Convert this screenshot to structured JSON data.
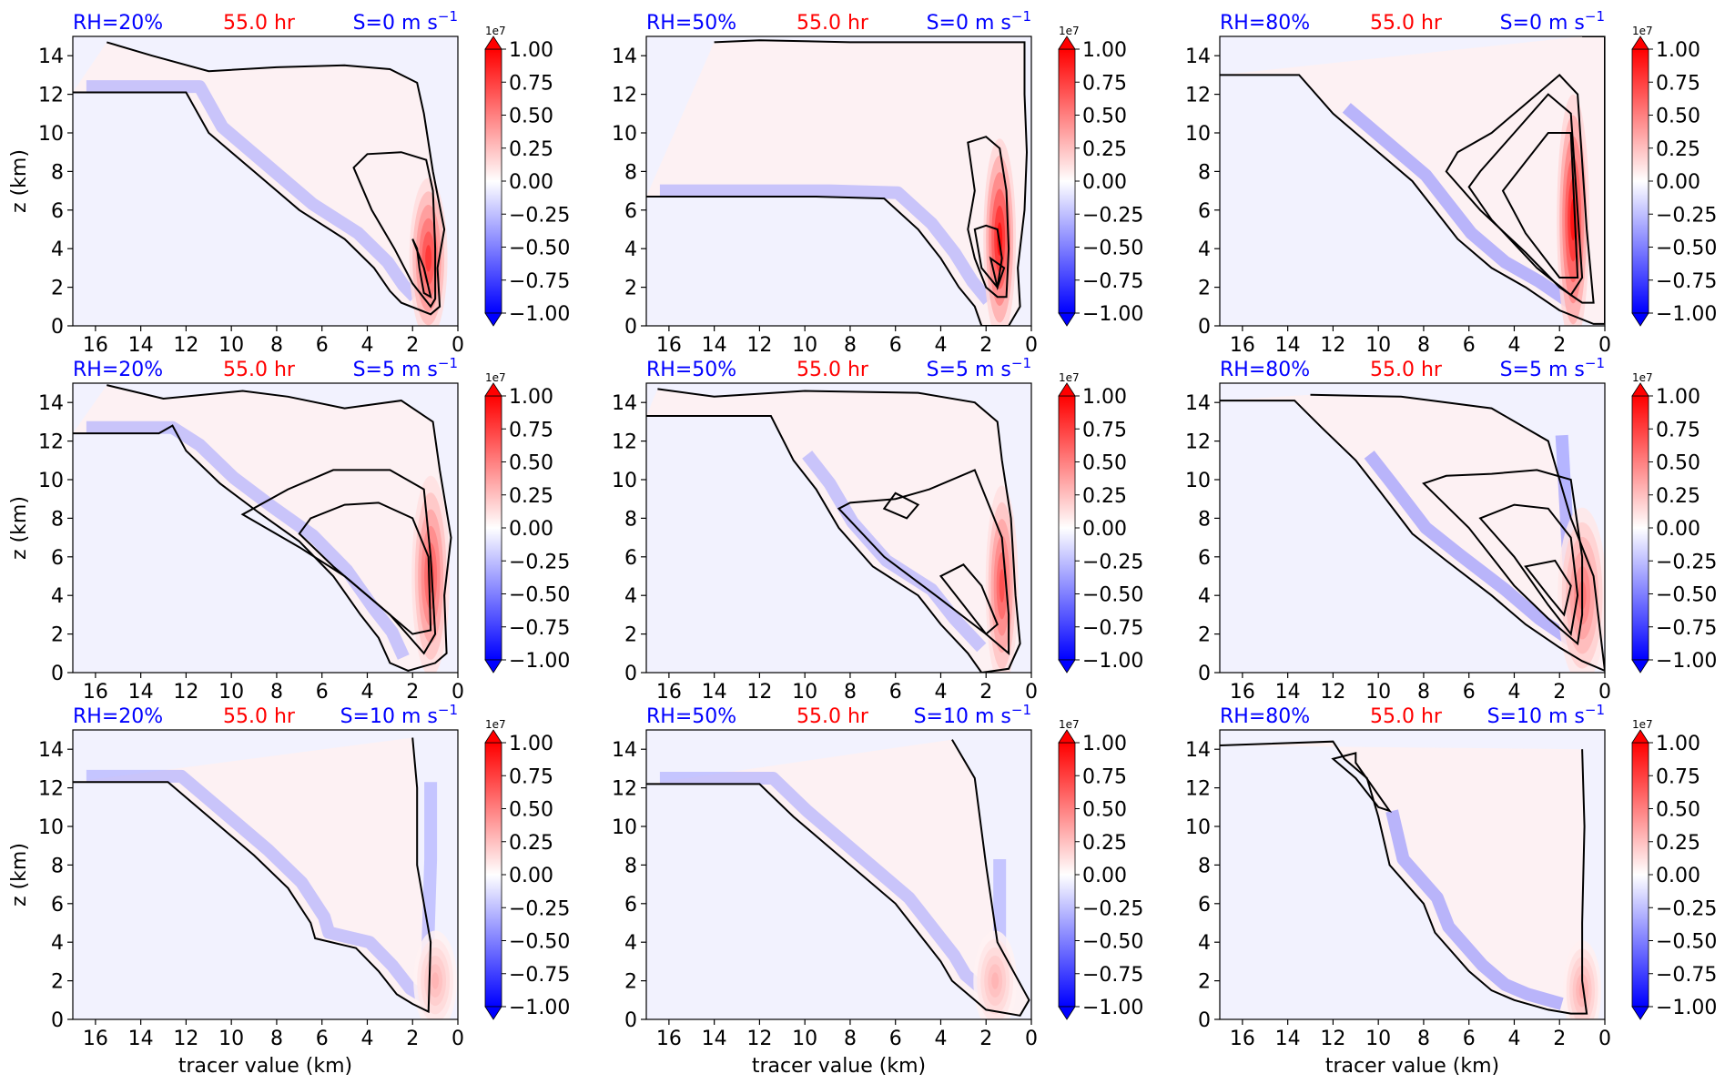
{
  "chart_data": {
    "type": "heatmap",
    "layout": {
      "rows": 3,
      "cols": 3
    },
    "row_titles_center": "55.0 hr",
    "column_titles": [
      "RH=20%",
      "RH=50%",
      "RH=80%"
    ],
    "row_shear_titles": [
      {
        "prefix": "S=0 m s",
        "sup": "−1"
      },
      {
        "prefix": "S=5 m s",
        "sup": "−1"
      },
      {
        "prefix": "S=10 m s",
        "sup": "−1"
      }
    ],
    "xlabel": "tracer value (km)",
    "ylabel": "z (km)",
    "x_ticks": [
      "16",
      "14",
      "12",
      "10",
      "8",
      "6",
      "4",
      "2",
      "0"
    ],
    "y_ticks": [
      "0",
      "2",
      "4",
      "6",
      "8",
      "10",
      "12",
      "14"
    ],
    "xlim": [
      17,
      0
    ],
    "ylim": [
      0,
      15
    ],
    "colorbar": {
      "offset_label": "1e7",
      "ticks": [
        "−1.00",
        "−0.75",
        "−0.50",
        "−0.25",
        "0.00",
        "0.25",
        "0.50",
        "0.75",
        "1.00"
      ],
      "range": [
        -1.0,
        1.0
      ],
      "cmap": "bwr",
      "extend": "both"
    },
    "colors": {
      "rh_title": "#0000ff",
      "time_title": "#ff0000",
      "shear_title": "#0000ff",
      "contour": "#000000",
      "background_field": "#f2f2fe"
    },
    "panels": [
      {
        "rh": "RH=20%",
        "shear": 0,
        "outer_boundary": [
          [
            17,
            12.1
          ],
          [
            12,
            12.1
          ],
          [
            11,
            10
          ],
          [
            9,
            8
          ],
          [
            7,
            6
          ],
          [
            5,
            4.5
          ],
          [
            3.7,
            3
          ],
          [
            3,
            1.8
          ],
          [
            2.5,
            1.2
          ],
          [
            1.2,
            0.6
          ],
          [
            0.8,
            1
          ],
          [
            0.9,
            3
          ],
          [
            0.6,
            5
          ],
          [
            1.1,
            8
          ],
          [
            1.5,
            11
          ],
          [
            1.8,
            12.6
          ],
          [
            3,
            13.3
          ],
          [
            5,
            13.5
          ],
          [
            8,
            13.4
          ],
          [
            11,
            13.2
          ],
          [
            13.5,
            14
          ],
          [
            15.5,
            14.7
          ]
        ],
        "inner_contours": [
          [
            [
              4.6,
              8.2
            ],
            [
              3.8,
              6
            ],
            [
              2.8,
              4
            ],
            [
              2,
              2.2
            ],
            [
              1.2,
              1
            ],
            [
              1,
              1.4
            ],
            [
              1,
              4
            ],
            [
              1.1,
              7
            ],
            [
              1.4,
              8.6
            ],
            [
              2.5,
              9
            ],
            [
              4,
              8.9
            ]
          ],
          [
            [
              2,
              4.5
            ],
            [
              1.5,
              3
            ],
            [
              1.3,
              2
            ],
            [
              1.2,
              1.5
            ],
            [
              1.5,
              1.7
            ],
            [
              1.7,
              3
            ],
            [
              1.8,
              4
            ]
          ]
        ],
        "red_x": 1.3,
        "red_z": 3.5,
        "red_w": 0.7,
        "red_h": 3,
        "red_amp": 0.75,
        "blue_band_amp": 0.25
      }
    ]
  }
}
